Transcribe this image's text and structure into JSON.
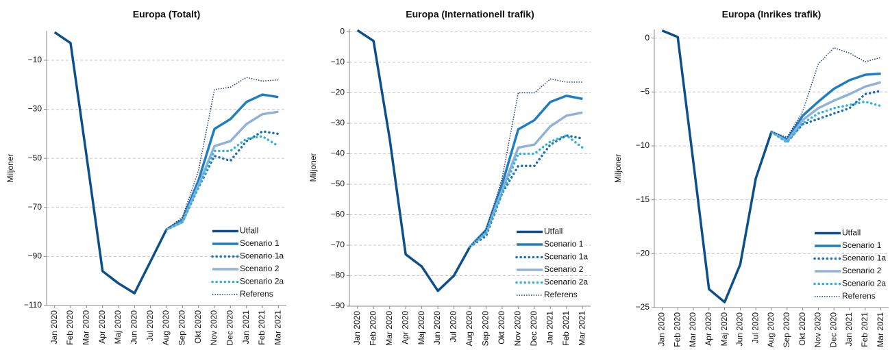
{
  "chart_data": [
    {
      "type": "line",
      "title": "Europa (Totalt)",
      "y_label": "Miljoner",
      "categories": [
        "Jan 2020",
        "Feb 2020",
        "Mar 2020",
        "Apr 2020",
        "Maj 2020",
        "Jun 2020",
        "Jul 2020",
        "Aug 2020",
        "Sep 2020",
        "Okt 2020",
        "Nov 2020",
        "Dec 2020",
        "Jan 2021",
        "Feb 2021",
        "Mar 2021"
      ],
      "ylim": [
        -110,
        2
      ],
      "yticks": [
        {
          "value": -10,
          "label": "−10"
        },
        {
          "value": -30,
          "label": "−30"
        },
        {
          "value": -50,
          "label": "−50"
        },
        {
          "value": -70,
          "label": "−70"
        },
        {
          "value": -90,
          "label": "−90"
        },
        {
          "value": -110,
          "label": "−110"
        }
      ],
      "grid": true,
      "legend": "lower right",
      "series": [
        {
          "name": "Utfall",
          "color": "#0d4f8b",
          "linestyle": "solid",
          "values": [
            1.4,
            -3,
            -49,
            -96,
            -101,
            -105,
            -92,
            -79,
            null,
            null,
            null,
            null,
            null,
            null,
            null
          ]
        },
        {
          "name": "Scenario 1",
          "color": "#1f7ec2",
          "linestyle": "solid",
          "values": [
            null,
            null,
            null,
            null,
            null,
            null,
            null,
            -79,
            -75,
            -59,
            -38,
            -34,
            -27,
            -24,
            -25
          ]
        },
        {
          "name": "Scenario 1a",
          "color": "#1a6fb5",
          "linestyle": "dotted",
          "values": [
            null,
            null,
            null,
            null,
            null,
            null,
            null,
            -79,
            -76,
            -62,
            -49,
            -51,
            -43,
            -39,
            -40
          ]
        },
        {
          "name": "Scenario 2",
          "color": "#8fb2d8",
          "linestyle": "solid",
          "values": [
            null,
            null,
            null,
            null,
            null,
            null,
            null,
            -79,
            -76,
            -61,
            -45,
            -43,
            -36,
            -32,
            -31
          ]
        },
        {
          "name": "Scenario 2a",
          "color": "#2fb0e0",
          "linestyle": "dotted",
          "values": [
            null,
            null,
            null,
            null,
            null,
            null,
            null,
            -79,
            -76,
            -62,
            -47,
            -47,
            -42,
            -41,
            -45
          ]
        },
        {
          "name": "Referens",
          "color": "#1f3a6a",
          "linestyle": "densely-dotted",
          "values": [
            null,
            null,
            null,
            null,
            null,
            null,
            null,
            -79,
            -74,
            -55,
            -22,
            -21,
            -17,
            -18.5,
            -18
          ]
        }
      ]
    },
    {
      "type": "line",
      "title": "Europa (Internationell trafik)",
      "y_label": "Miljoner",
      "categories": [
        "Jan 2020",
        "Feb 2020",
        "Mar 2020",
        "Apr 2020",
        "Maj 2020",
        "Jun 2020",
        "Jul 2020",
        "Aug 2020",
        "Sep 2020",
        "Okt 2020",
        "Nov 2020",
        "Dec 2020",
        "Jan 2021",
        "Feb 2021",
        "Mar 2021"
      ],
      "ylim": [
        -90,
        1
      ],
      "yticks": [
        0,
        {
          "value": -10,
          "label": "−10"
        },
        {
          "value": -20,
          "label": "−20"
        },
        {
          "value": -30,
          "label": "−30"
        },
        {
          "value": -40,
          "label": "−40"
        },
        {
          "value": -50,
          "label": "−50"
        },
        {
          "value": -60,
          "label": "−60"
        },
        {
          "value": -70,
          "label": "−70"
        },
        {
          "value": -80,
          "label": "−80"
        },
        {
          "value": -90,
          "label": "−90"
        }
      ],
      "grid": true,
      "legend": "lower right",
      "series": [
        {
          "name": "Utfall",
          "color": "#0d4f8b",
          "linestyle": "solid",
          "values": [
            0.5,
            -3,
            -35,
            -73,
            -77,
            -85,
            -80,
            -70.5,
            null,
            null,
            null,
            null,
            null,
            null,
            null
          ]
        },
        {
          "name": "Scenario 1",
          "color": "#1f7ec2",
          "linestyle": "solid",
          "values": [
            null,
            null,
            null,
            null,
            null,
            null,
            null,
            -70.5,
            -65,
            -50,
            -32,
            -29,
            -23,
            -21,
            -22
          ]
        },
        {
          "name": "Scenario 1a",
          "color": "#1a6fb5",
          "linestyle": "dotted",
          "values": [
            null,
            null,
            null,
            null,
            null,
            null,
            null,
            -70.5,
            -67,
            -53,
            -44,
            -44,
            -37,
            -34,
            -35
          ]
        },
        {
          "name": "Scenario 2",
          "color": "#8fb2d8",
          "linestyle": "solid",
          "values": [
            null,
            null,
            null,
            null,
            null,
            null,
            null,
            -70.5,
            -66,
            -52,
            -38,
            -37,
            -31,
            -27.5,
            -26.5
          ]
        },
        {
          "name": "Scenario 2a",
          "color": "#2fb0e0",
          "linestyle": "dotted",
          "values": [
            null,
            null,
            null,
            null,
            null,
            null,
            null,
            -70.5,
            -66,
            -53,
            -40,
            -40,
            -36,
            -34,
            -38
          ]
        },
        {
          "name": "Referens",
          "color": "#1f3a6a",
          "linestyle": "densely-dotted",
          "values": [
            null,
            null,
            null,
            null,
            null,
            null,
            null,
            -70.5,
            -65,
            -48,
            -20,
            -20,
            -15.5,
            -16.5,
            -16.5
          ]
        }
      ]
    },
    {
      "type": "line",
      "title": "Europa (Inrikes trafik)",
      "y_label": "Miljoner",
      "categories": [
        "Jan 2020",
        "Feb 2020",
        "Mar 2020",
        "Apr 2020",
        "Maj 2020",
        "Jun 2020",
        "Jul 2020",
        "Aug 2020",
        "Sep 2020",
        "Okt 2020",
        "Nov 2020",
        "Dec 2020",
        "Jan 2021",
        "Feb 2021",
        "Mar 2021"
      ],
      "ylim": [
        -25,
        0.8
      ],
      "yticks": [
        0,
        {
          "value": -5,
          "label": "−5"
        },
        {
          "value": -10,
          "label": "−10"
        },
        {
          "value": -15,
          "label": "−15"
        },
        {
          "value": -20,
          "label": "−20"
        },
        {
          "value": -25,
          "label": "−25"
        }
      ],
      "grid": true,
      "legend": "lower right",
      "series": [
        {
          "name": "Utfall",
          "color": "#0d4f8b",
          "linestyle": "solid",
          "values": [
            0.7,
            0.1,
            -11.5,
            -23.3,
            -24.5,
            -21,
            -13,
            -8.7,
            null,
            null,
            null,
            null,
            null,
            null,
            null
          ]
        },
        {
          "name": "Scenario 1",
          "color": "#1f7ec2",
          "linestyle": "solid",
          "values": [
            null,
            null,
            null,
            null,
            null,
            null,
            null,
            -8.7,
            -9.4,
            -7.2,
            -5.9,
            -4.7,
            -3.9,
            -3.4,
            -3.3
          ]
        },
        {
          "name": "Scenario 1a",
          "color": "#1a6fb5",
          "linestyle": "dotted",
          "values": [
            null,
            null,
            null,
            null,
            null,
            null,
            null,
            -8.7,
            -9.6,
            -8,
            -7.5,
            -7,
            -6.5,
            -5.2,
            -4.9
          ]
        },
        {
          "name": "Scenario 2",
          "color": "#8fb2d8",
          "linestyle": "solid",
          "values": [
            null,
            null,
            null,
            null,
            null,
            null,
            null,
            -8.7,
            -9.6,
            -7.6,
            -6.5,
            -5.8,
            -5.2,
            -4.5,
            -4.1
          ]
        },
        {
          "name": "Scenario 2a",
          "color": "#2fb0e0",
          "linestyle": "dotted",
          "values": [
            null,
            null,
            null,
            null,
            null,
            null,
            null,
            -8.7,
            -9.7,
            -7.9,
            -7,
            -6.5,
            -6.2,
            -5.9,
            -6.3
          ]
        },
        {
          "name": "Referens",
          "color": "#1f3a6a",
          "linestyle": "densely-dotted",
          "values": [
            null,
            null,
            null,
            null,
            null,
            null,
            null,
            -8.7,
            -9.2,
            -6.8,
            -2.4,
            -0.9,
            -1.4,
            -2.2,
            -1.8
          ]
        }
      ]
    }
  ]
}
